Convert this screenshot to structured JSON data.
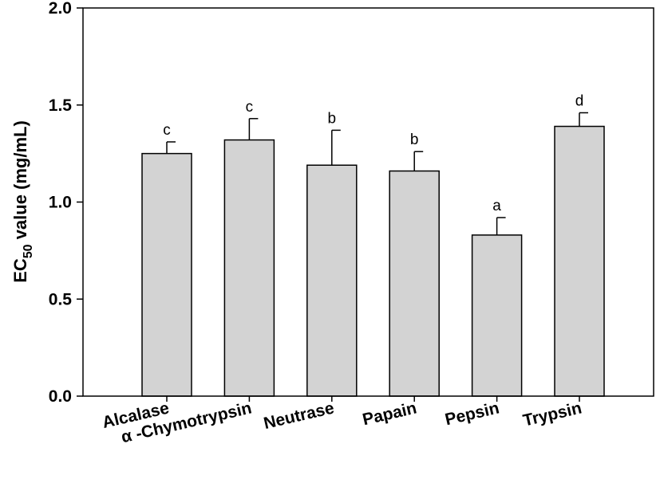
{
  "chart_data": {
    "type": "bar",
    "categories": [
      "Alcalase",
      "α -Chymotrypsin",
      "Neutrase",
      "Papain",
      "Pepsin",
      "Trypsin"
    ],
    "values": [
      1.25,
      1.32,
      1.19,
      1.16,
      0.83,
      1.39
    ],
    "errors": [
      0.06,
      0.11,
      0.18,
      0.1,
      0.09,
      0.07
    ],
    "significance": [
      "c",
      "c",
      "b",
      "b",
      "a",
      "d"
    ],
    "ylabel": {
      "main": "EC",
      "sub": "50",
      "rest": " value (mg/mL)"
    },
    "ylim": [
      0,
      2.0
    ],
    "yticks": [
      "0.0",
      "0.5",
      "1.0",
      "1.5",
      "2.0"
    ],
    "grid": false,
    "bar_color": "#d3d3d3",
    "edge_color": "#000000"
  }
}
